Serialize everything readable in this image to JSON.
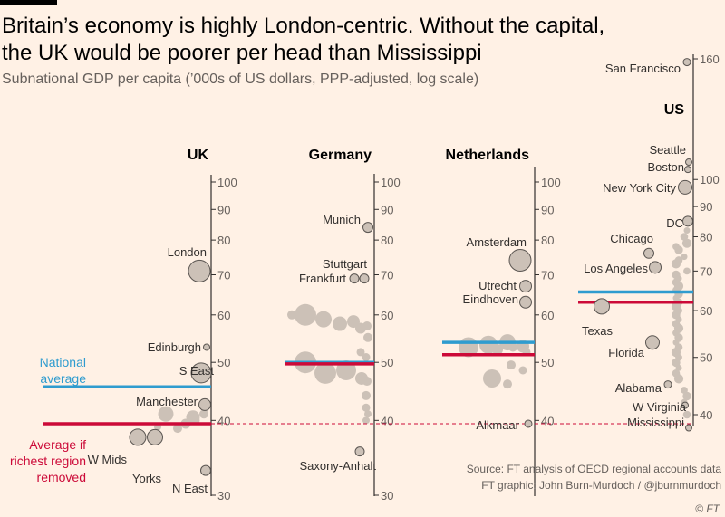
{
  "header": {
    "title_line1": "Britain’s economy is highly London-centric. Without the capital,",
    "title_line2": "the UK would be poorer per head than Mississippi",
    "subtitle": "Subnational GDP per capita (’000s of US dollars, PPP-adjusted, log scale)"
  },
  "footer": {
    "source": "Source: FT analysis of OECD regional accounts data",
    "credit": "FT graphic: John Burn-Murdoch / @jburnmurdoch",
    "logo": "© FT"
  },
  "colors": {
    "background": "#fff1e5",
    "national_average": "#2f9ccf",
    "richest_removed": "#cc0a38",
    "dots": "#ccc1b7",
    "axis": "#33302e"
  },
  "legend": {
    "national_average": "National\naverage",
    "richest_removed": "Average if\nrichest region\nremoved"
  },
  "chart_data": [
    {
      "type": "scatter",
      "panel": "UK",
      "title": "UK",
      "scale": "log",
      "ylim": [
        30,
        105
      ],
      "ticks": [
        30,
        40,
        50,
        60,
        70,
        80,
        90,
        100
      ],
      "national_average": 45.5,
      "average_without_richest": 39.5,
      "labeled_regions": [
        {
          "name": "London",
          "value": 71
        },
        {
          "name": "Edinburgh",
          "value": 53
        },
        {
          "name": "S East",
          "value": 48
        },
        {
          "name": "Manchester",
          "value": 42.5
        },
        {
          "name": "W Mids",
          "value": 37.5
        },
        {
          "name": "Yorks",
          "value": 37.5
        },
        {
          "name": "N East",
          "value": 33
        }
      ],
      "other_regions": [
        41,
        40.5,
        39.5,
        41,
        38.8,
        40,
        39
      ]
    },
    {
      "type": "scatter",
      "panel": "Germany",
      "title": "Germany",
      "scale": "log",
      "ylim": [
        30,
        105
      ],
      "ticks": [
        30,
        40,
        50,
        60,
        70,
        80,
        90,
        100
      ],
      "national_average": 50,
      "average_without_richest": 49.7,
      "labeled_regions": [
        {
          "name": "Munich",
          "value": 84
        },
        {
          "name": "Stuttgart",
          "value": 69
        },
        {
          "name": "Frankfurt",
          "value": 69
        },
        {
          "name": "Saxony-Anhalt",
          "value": 35.5
        }
      ],
      "other_regions": [
        60,
        59,
        58,
        58.5,
        57.5,
        60,
        57,
        55,
        52,
        51,
        50,
        48,
        48.5,
        47,
        46.5,
        44,
        42,
        41,
        40
      ]
    },
    {
      "type": "scatter",
      "panel": "Netherlands",
      "title": "Netherlands",
      "scale": "log",
      "ylim": [
        30,
        105
      ],
      "ticks": [
        40,
        50,
        60,
        70,
        80,
        90,
        100
      ],
      "national_average": 54,
      "average_without_richest": 51.5,
      "labeled_regions": [
        {
          "name": "Amsterdam",
          "value": 74
        },
        {
          "name": "Utrecht",
          "value": 67
        },
        {
          "name": "Eindhoven",
          "value": 63
        },
        {
          "name": "Alkmaar",
          "value": 39.5
        }
      ],
      "other_regions": [
        53,
        53.5,
        54,
        53.2,
        52.5,
        53,
        52,
        49.5,
        48.5,
        47,
        46
      ]
    },
    {
      "type": "scatter",
      "panel": "US",
      "title": "US",
      "scale": "log",
      "ylim": [
        37,
        165
      ],
      "ticks": [
        40,
        50,
        60,
        70,
        80,
        90,
        100,
        160
      ],
      "national_average": 64.5,
      "average_without_richest": 62,
      "labeled_regions": [
        {
          "name": "San Francisco",
          "value": 158
        },
        {
          "name": "Seattle",
          "value": 107
        },
        {
          "name": "Boston",
          "value": 104
        },
        {
          "name": "New York City",
          "value": 97
        },
        {
          "name": "DC",
          "value": 85
        },
        {
          "name": "Chicago",
          "value": 75
        },
        {
          "name": "Los Angeles",
          "value": 71
        },
        {
          "name": "Texas",
          "value": 61
        },
        {
          "name": "Florida",
          "value": 53
        },
        {
          "name": "Alabama",
          "value": 45
        },
        {
          "name": "W Virginia",
          "value": 41.5
        },
        {
          "name": "Mississippi",
          "value": 38
        }
      ],
      "other_regions": [
        82,
        80,
        78,
        77,
        76,
        74,
        73,
        72,
        70,
        69,
        68,
        67,
        66,
        65,
        64,
        63,
        62,
        61,
        60,
        59,
        58,
        57,
        56,
        55,
        54,
        53,
        52,
        51,
        50,
        49,
        48,
        47,
        46,
        44,
        43,
        42,
        40
      ]
    }
  ]
}
